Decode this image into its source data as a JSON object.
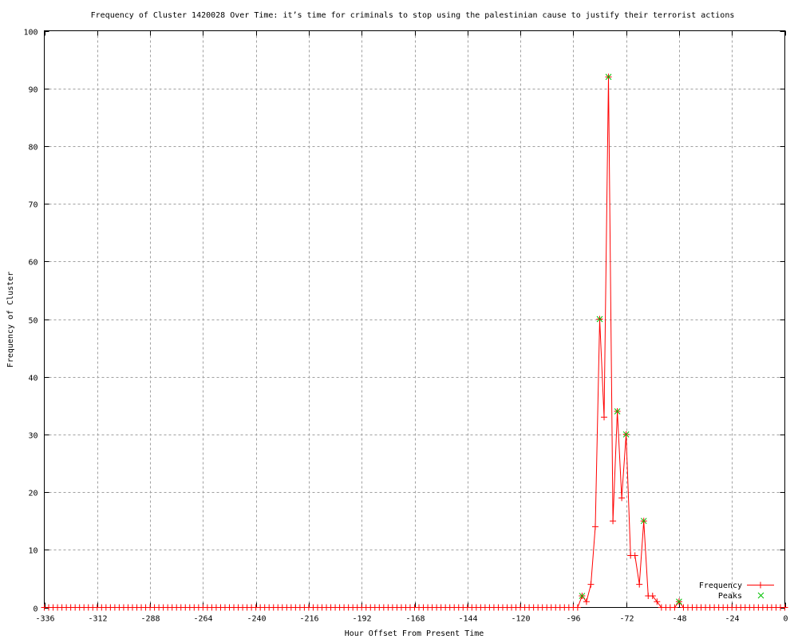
{
  "chart_data": {
    "type": "line",
    "title": "Frequency of Cluster 1420028 Over Time: it’s time for criminals to stop using the palestinian cause to justify their terrorist actions",
    "xlabel": "Hour Offset From Present Time",
    "ylabel": "Frequency of Cluster",
    "xlim": [
      -336,
      0
    ],
    "ylim": [
      0,
      100
    ],
    "xticks": [
      -336,
      -312,
      -288,
      -264,
      -240,
      -216,
      -192,
      -168,
      -144,
      -120,
      -96,
      -72,
      -48,
      -24,
      0
    ],
    "yticks": [
      0,
      10,
      20,
      30,
      40,
      50,
      60,
      70,
      80,
      90,
      100
    ],
    "grid": true,
    "legend_position": "bottom-right",
    "series": [
      {
        "name": "Frequency",
        "color": "#ff0000",
        "marker": "plus",
        "x": [
          -336,
          -334,
          -332,
          -330,
          -328,
          -326,
          -324,
          -322,
          -320,
          -318,
          -316,
          -314,
          -312,
          -310,
          -308,
          -306,
          -304,
          -302,
          -300,
          -298,
          -296,
          -294,
          -292,
          -290,
          -288,
          -286,
          -284,
          -282,
          -280,
          -278,
          -276,
          -274,
          -272,
          -270,
          -268,
          -266,
          -264,
          -262,
          -260,
          -258,
          -256,
          -254,
          -252,
          -250,
          -248,
          -246,
          -244,
          -242,
          -240,
          -238,
          -236,
          -234,
          -232,
          -230,
          -228,
          -226,
          -224,
          -222,
          -220,
          -218,
          -216,
          -214,
          -212,
          -210,
          -208,
          -206,
          -204,
          -202,
          -200,
          -198,
          -196,
          -194,
          -192,
          -190,
          -188,
          -186,
          -184,
          -182,
          -180,
          -178,
          -176,
          -174,
          -172,
          -170,
          -168,
          -166,
          -164,
          -162,
          -160,
          -158,
          -156,
          -154,
          -152,
          -150,
          -148,
          -146,
          -144,
          -142,
          -140,
          -138,
          -136,
          -134,
          -132,
          -130,
          -128,
          -126,
          -124,
          -122,
          -120,
          -118,
          -116,
          -114,
          -112,
          -110,
          -108,
          -106,
          -104,
          -102,
          -100,
          -98,
          -96,
          -94,
          -92,
          -90,
          -88,
          -86,
          -84,
          -82,
          -80,
          -78,
          -76,
          -74,
          -72,
          -70,
          -68,
          -66,
          -64,
          -62,
          -60,
          -58,
          -56,
          -54,
          -52,
          -50,
          -48,
          -46,
          -44,
          -42,
          -40,
          -38,
          -36,
          -34,
          -32,
          -30,
          -28,
          -26,
          -24,
          -22,
          -20,
          -18,
          -16,
          -14,
          -12,
          -10,
          -8,
          -6,
          -4,
          -2,
          0
        ],
        "y": [
          0,
          0,
          0,
          0,
          0,
          0,
          0,
          0,
          0,
          0,
          0,
          0,
          0,
          0,
          0,
          0,
          0,
          0,
          0,
          0,
          0,
          0,
          0,
          0,
          0,
          0,
          0,
          0,
          0,
          0,
          0,
          0,
          0,
          0,
          0,
          0,
          0,
          0,
          0,
          0,
          0,
          0,
          0,
          0,
          0,
          0,
          0,
          0,
          0,
          0,
          0,
          0,
          0,
          0,
          0,
          0,
          0,
          0,
          0,
          0,
          0,
          0,
          0,
          0,
          0,
          0,
          0,
          0,
          0,
          0,
          0,
          0,
          0,
          0,
          0,
          0,
          0,
          0,
          0,
          0,
          0,
          0,
          0,
          0,
          0,
          0,
          0,
          0,
          0,
          0,
          0,
          0,
          0,
          0,
          0,
          0,
          0,
          0,
          0,
          0,
          0,
          0,
          0,
          0,
          0,
          0,
          0,
          0,
          0,
          0,
          0,
          0,
          0,
          0,
          0,
          0,
          0,
          0,
          0,
          0,
          0,
          0,
          2,
          1,
          4,
          14,
          50,
          33,
          92,
          15,
          34,
          19,
          30,
          9,
          9,
          4,
          15,
          2,
          2,
          1,
          0,
          0,
          0,
          0,
          1,
          0,
          0,
          0,
          0,
          0,
          0,
          0,
          0,
          0,
          0,
          0,
          0,
          0,
          0,
          0,
          0,
          0,
          0,
          0,
          0,
          0,
          0,
          0,
          0
        ]
      },
      {
        "name": "Peaks",
        "color": "#00c000",
        "marker": "x",
        "x": [
          -92,
          -84,
          -80,
          -76,
          -72,
          -64,
          -48
        ],
        "y": [
          2,
          50,
          92,
          34,
          30,
          15,
          1
        ]
      }
    ]
  }
}
